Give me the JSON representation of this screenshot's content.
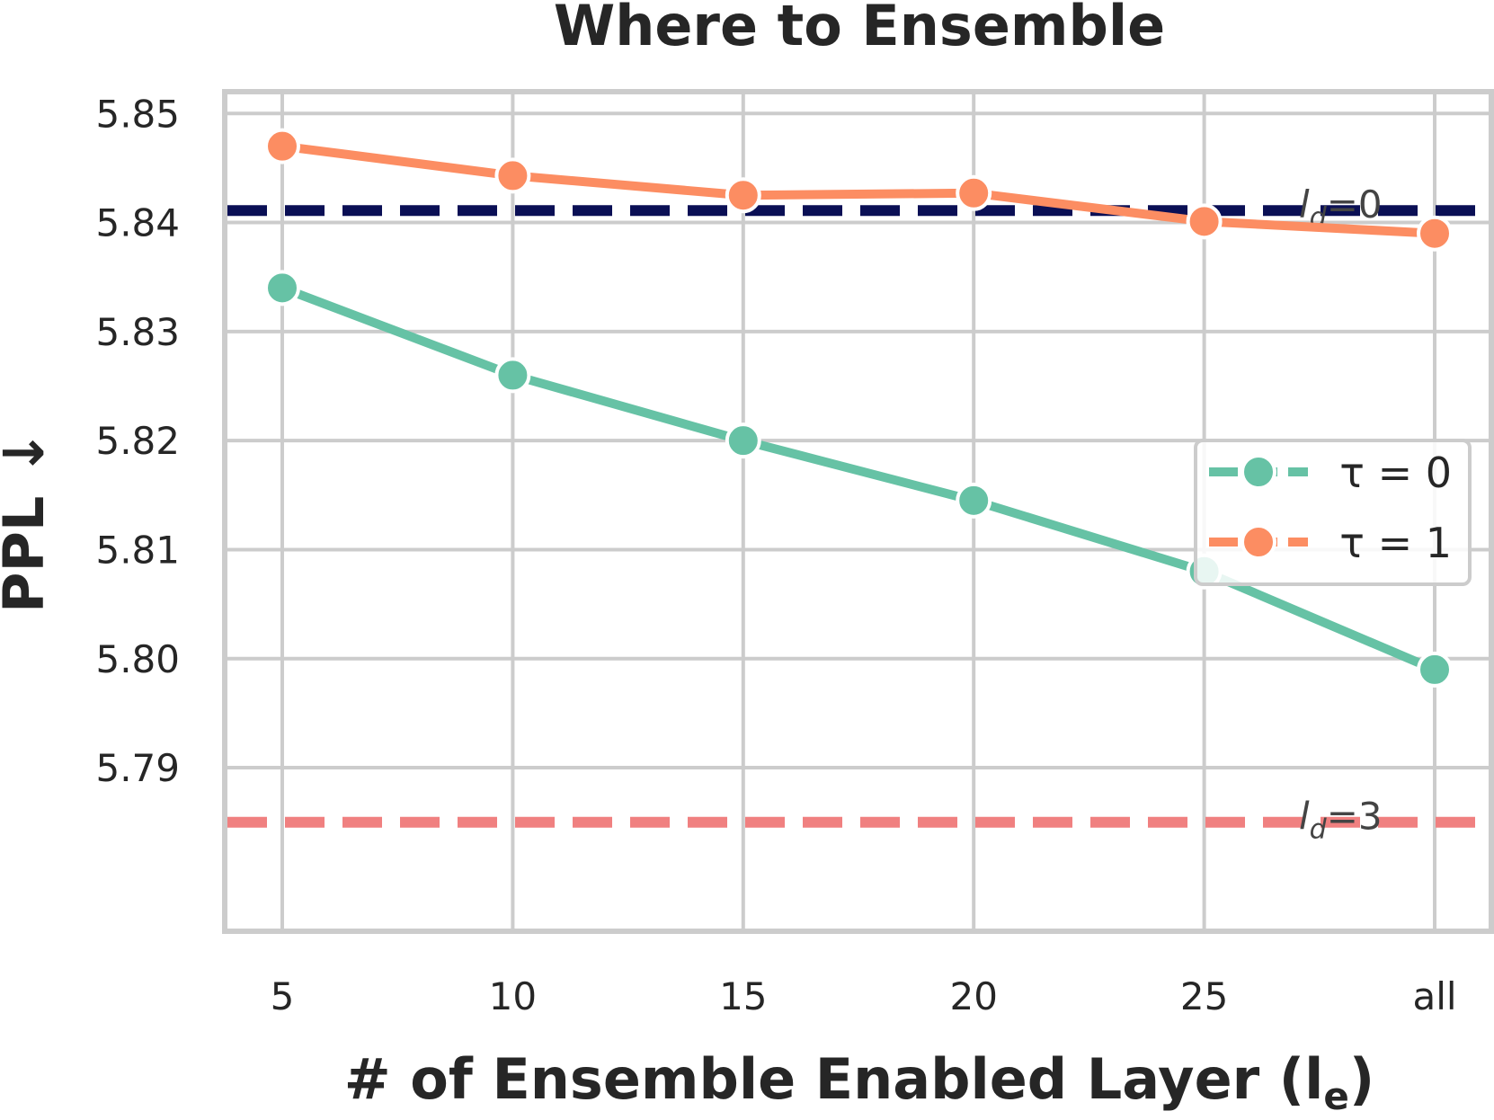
{
  "chart_data": {
    "type": "line",
    "title": "Where to Ensemble",
    "xlabel": "# of Ensemble Enabled Layer (l",
    "xlabel_sub": "e",
    "xlabel_suffix": ")",
    "ylabel": "PPL ↓",
    "categories": [
      "5",
      "10",
      "15",
      "20",
      "25",
      "all"
    ],
    "ylim": [
      5.775,
      5.852
    ],
    "yticks": [
      "5.79",
      "5.80",
      "5.81",
      "5.82",
      "5.83",
      "5.84",
      "5.85"
    ],
    "grid": true,
    "legend_position": "center-right",
    "series": [
      {
        "name": "τ = 0",
        "color": "#66c2a5",
        "values": [
          5.834,
          5.826,
          5.82,
          5.8145,
          5.808,
          5.799
        ]
      },
      {
        "name": "τ = 1",
        "color": "#fc8d62",
        "values": [
          5.847,
          5.8443,
          5.8425,
          5.8427,
          5.8401,
          5.839
        ]
      }
    ],
    "reference_lines": [
      {
        "label_prefix": "l",
        "label_sub": "d",
        "label_suffix": "=0",
        "value": 5.8411,
        "color": "#0a0f55"
      },
      {
        "label_prefix": "l",
        "label_sub": "d",
        "label_suffix": "=3",
        "value": 5.785,
        "color": "#f08080"
      }
    ]
  }
}
